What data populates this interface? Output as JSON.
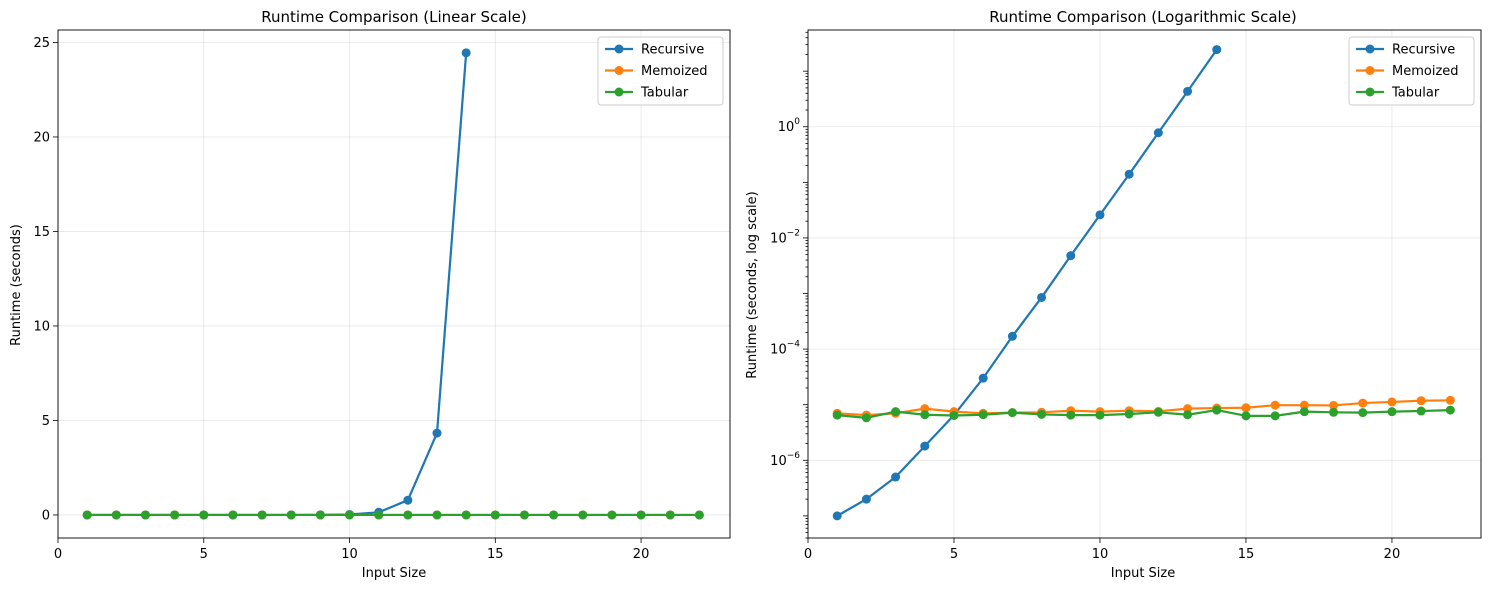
{
  "colors": {
    "Recursive": "#1f77b4",
    "Memoized": "#ff7f0e",
    "Tabular": "#2ca02c"
  },
  "chart_data": [
    {
      "type": "line",
      "title": "Runtime Comparison (Linear Scale)",
      "xlabel": "Input Size",
      "ylabel": "Runtime (seconds)",
      "xlim": [
        0,
        23.05
      ],
      "ylim": [
        -1.22,
        25.66
      ],
      "yscale": "linear",
      "xticks": [
        0,
        5,
        10,
        15,
        20
      ],
      "yticks": [
        0,
        5,
        10,
        15,
        20,
        25
      ],
      "grid": true,
      "legend": "top-right",
      "series": [
        {
          "name": "Recursive",
          "x": [
            1,
            2,
            3,
            4,
            5,
            6,
            7,
            8,
            9,
            10,
            11,
            12,
            13,
            14
          ],
          "y": [
            1e-07,
            2e-07,
            5e-07,
            1.8e-06,
            6.5e-06,
            3e-05,
            0.00017,
            0.00085,
            0.0048,
            0.026,
            0.14,
            0.78,
            4.33,
            24.45
          ]
        },
        {
          "name": "Memoized",
          "x": [
            1,
            2,
            3,
            4,
            5,
            6,
            7,
            8,
            9,
            10,
            11,
            12,
            13,
            14,
            15,
            16,
            17,
            18,
            19,
            20,
            21,
            22
          ],
          "y": [
            7e-06,
            6.5e-06,
            7e-06,
            8.5e-06,
            7.5e-06,
            7e-06,
            7.2e-06,
            7.3e-06,
            7.8e-06,
            7.5e-06,
            7.8e-06,
            7.6e-06,
            8.5e-06,
            8.7e-06,
            8.8e-06,
            9.8e-06,
            9.8e-06,
            9.7e-06,
            1.07e-05,
            1.12e-05,
            1.18e-05,
            1.2e-05
          ]
        },
        {
          "name": "Tabular",
          "x": [
            1,
            2,
            3,
            4,
            5,
            6,
            7,
            8,
            9,
            10,
            11,
            12,
            13,
            14,
            15,
            16,
            17,
            18,
            19,
            20,
            21,
            22
          ],
          "y": [
            6.5e-06,
            5.8e-06,
            7.5e-06,
            6.6e-06,
            6.4e-06,
            6.6e-06,
            7.2e-06,
            6.7e-06,
            6.5e-06,
            6.5e-06,
            6.8e-06,
            7.3e-06,
            6.6e-06,
            8e-06,
            6.3e-06,
            6.3e-06,
            7.5e-06,
            7.3e-06,
            7.2e-06,
            7.5e-06,
            7.7e-06,
            8e-06
          ]
        }
      ]
    },
    {
      "type": "line",
      "title": "Runtime Comparison (Logarithmic Scale)",
      "xlabel": "Input Size",
      "ylabel": "Runtime (seconds, log scale)",
      "xlim": [
        0,
        23.05
      ],
      "ylim": [
        4e-08,
        55
      ],
      "yscale": "log",
      "xticks": [
        0,
        5,
        10,
        15,
        20
      ],
      "yticks": [
        -6,
        -4,
        -2,
        0
      ],
      "grid": true,
      "legend": "top-right",
      "series": [
        {
          "name": "Recursive",
          "x": [
            1,
            2,
            3,
            4,
            5,
            6,
            7,
            8,
            9,
            10,
            11,
            12,
            13,
            14
          ],
          "y": [
            1e-07,
            2e-07,
            5e-07,
            1.8e-06,
            6.5e-06,
            3e-05,
            0.00017,
            0.00085,
            0.0048,
            0.026,
            0.14,
            0.78,
            4.33,
            24.45
          ]
        },
        {
          "name": "Memoized",
          "x": [
            1,
            2,
            3,
            4,
            5,
            6,
            7,
            8,
            9,
            10,
            11,
            12,
            13,
            14,
            15,
            16,
            17,
            18,
            19,
            20,
            21,
            22
          ],
          "y": [
            7e-06,
            6.5e-06,
            7e-06,
            8.5e-06,
            7.5e-06,
            7e-06,
            7.2e-06,
            7.3e-06,
            7.8e-06,
            7.5e-06,
            7.8e-06,
            7.6e-06,
            8.5e-06,
            8.7e-06,
            8.8e-06,
            9.8e-06,
            9.8e-06,
            9.7e-06,
            1.07e-05,
            1.12e-05,
            1.18e-05,
            1.2e-05
          ]
        },
        {
          "name": "Tabular",
          "x": [
            1,
            2,
            3,
            4,
            5,
            6,
            7,
            8,
            9,
            10,
            11,
            12,
            13,
            14,
            15,
            16,
            17,
            18,
            19,
            20,
            21,
            22
          ],
          "y": [
            6.5e-06,
            5.8e-06,
            7.5e-06,
            6.6e-06,
            6.4e-06,
            6.6e-06,
            7.2e-06,
            6.7e-06,
            6.5e-06,
            6.5e-06,
            6.8e-06,
            7.3e-06,
            6.6e-06,
            8e-06,
            6.3e-06,
            6.3e-06,
            7.5e-06,
            7.3e-06,
            7.2e-06,
            7.5e-06,
            7.7e-06,
            8e-06
          ]
        }
      ]
    }
  ]
}
